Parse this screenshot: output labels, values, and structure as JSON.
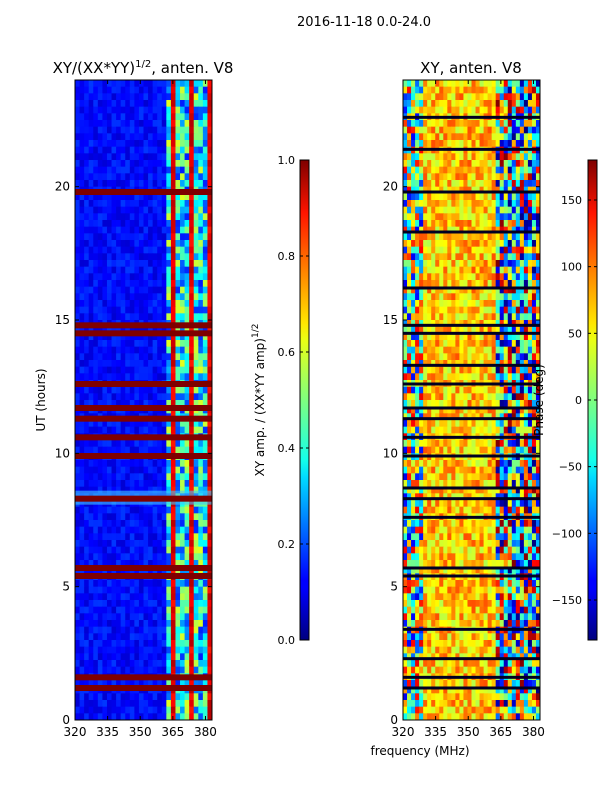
{
  "figure_title": "2016-11-18 0.0-24.0",
  "shared_xlabel": "frequency (MHz)",
  "chart_data": [
    {
      "type": "heatmap",
      "title_main": "XY/(XX*YY)",
      "title_sup": "1/2",
      "title_rest": ", anten. V8",
      "ylabel": "UT (hours)",
      "xlim": [
        320,
        383
      ],
      "ylim": [
        0,
        24
      ],
      "xticks": [
        320,
        335,
        350,
        365,
        380
      ],
      "yticks": [
        0,
        5,
        10,
        15,
        20
      ],
      "colorbar": {
        "label_main": "XY amp. / (XX*YY amp)",
        "label_sup": "1/2",
        "range": [
          0.0,
          1.0
        ],
        "ticks": [
          "0.0",
          "0.2",
          "0.4",
          "0.6",
          "0.8",
          "1.0"
        ],
        "colormap": "jet"
      },
      "flagged_hours": [
        1.2,
        1.6,
        5.4,
        5.7,
        8.3,
        9.9,
        10.6,
        11.3,
        11.7,
        12.6,
        14.5,
        14.8,
        19.8
      ]
    },
    {
      "type": "heatmap",
      "title_main": "XY, anten. V8",
      "ylabel": "",
      "xlim": [
        320,
        383
      ],
      "ylim": [
        0,
        24
      ],
      "xticks": [
        320,
        335,
        350,
        365,
        380
      ],
      "yticks": [
        0,
        5,
        10,
        15,
        20
      ],
      "colorbar": {
        "label_main": "Phase (deg)",
        "range": [
          -180,
          180
        ],
        "ticks": [
          "150",
          "100",
          "50",
          "0",
          "−50",
          "−100",
          "−150"
        ],
        "colormap": "jet"
      },
      "flagged_hours": [
        1.2,
        1.6,
        2.3,
        3.4,
        5.4,
        5.7,
        7.6,
        8.3,
        8.7,
        9.9,
        10.6,
        11.3,
        11.7,
        12.6,
        13.3,
        14.5,
        14.8,
        16.2,
        18.3,
        19.8,
        21.4,
        22.6
      ]
    }
  ]
}
